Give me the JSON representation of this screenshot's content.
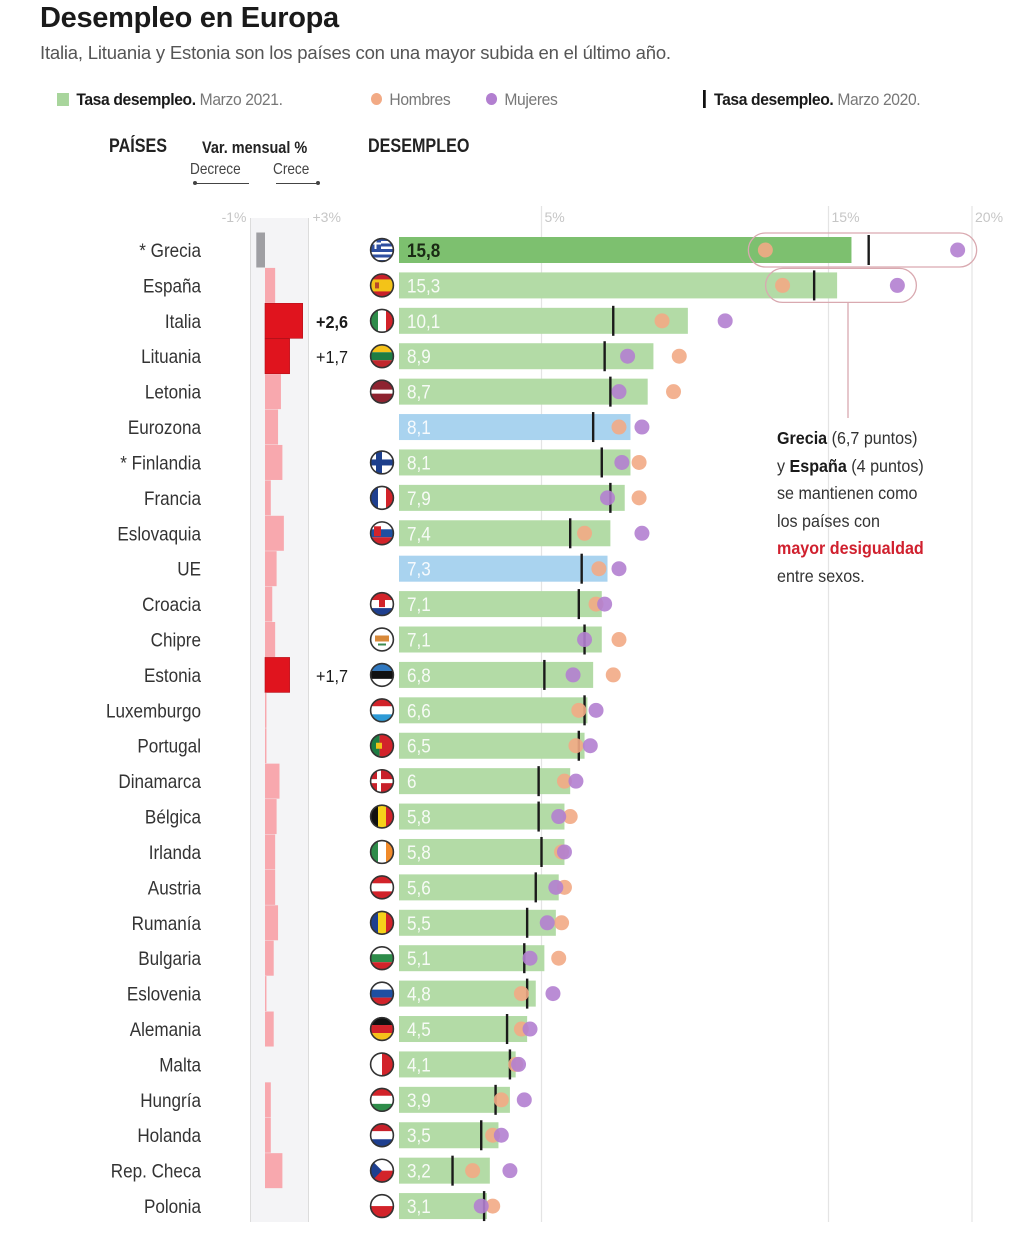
{
  "header": {
    "title": "Desempleo en Europa",
    "subtitle": "Italia, Lituania y Estonia son los países con una mayor subida en el último año."
  },
  "legend": {
    "rate_2021_bold": "Tasa desempleo.",
    "rate_2021_rest": "Marzo 2021.",
    "men": "Hombres",
    "women": "Mujeres",
    "rate_2020_bold": "Tasa desempleo.",
    "rate_2020_rest": "Marzo 2020."
  },
  "columns": {
    "countries": "PAÍSES",
    "monthly_var": "Var. mensual %",
    "decrease": "Decrece",
    "increase": "Crece",
    "unemployment": "DESEMPLEO"
  },
  "annotation": {
    "greece": "Grecia",
    "greece_points": " (6,7 puntos)",
    "and": "y ",
    "spain": "España",
    "spain_points": " (4 puntos)",
    "line3": "se mantienen como",
    "line4": "los países con",
    "highlight": "mayor desigualdad",
    "line6": "entre sexos."
  },
  "colors": {
    "bar_default": "#b3dba6",
    "bar_highlight": "#7dc06f",
    "bar_aggregate": "#a9d3ef",
    "men": "#f2aa85",
    "women": "#b27fd0",
    "var_strong": "#e0141e",
    "var_light": "#f8a3aa",
    "var_negative": "#9a9a9e",
    "marker_2020": "#1a1a1a",
    "pill_outline": "#d9a9b0",
    "accent_red": "#d0202e"
  },
  "chart_data": {
    "type": "bar",
    "title": "Desempleo en Europa",
    "subtitle": "Italia, Lituania y Estonia son los países con una mayor subida en el último año.",
    "categories": [
      "* Grecia",
      "España",
      "Italia",
      "Lituania",
      "Letonia",
      "Eurozona",
      "* Finlandia",
      "Francia",
      "Eslovaquia",
      "UE",
      "Croacia",
      "Chipre",
      "Estonia",
      "Luxemburgo",
      "Portugal",
      "Dinamarca",
      "Bélgica",
      "Irlanda",
      "Austria",
      "Rumanía",
      "Bulgaria",
      "Eslovenia",
      "Alemania",
      "Malta",
      "Hungría",
      "Holanda",
      "Rep. Checa",
      "Polonia"
    ],
    "flags": [
      "greece-flag",
      "spain-flag",
      "italy-flag",
      "lithuania-flag",
      "latvia-flag",
      null,
      "finland-flag",
      "france-flag",
      "slovakia-flag",
      null,
      "croatia-flag",
      "cyprus-flag",
      "estonia-flag",
      "luxembourg-flag",
      "portugal-flag",
      "denmark-flag",
      "belgium-flag",
      "ireland-flag",
      "austria-flag",
      "romania-flag",
      "bulgaria-flag",
      "slovenia-flag",
      "germany-flag",
      "malta-flag",
      "hungary-flag",
      "netherlands-flag",
      "czech-flag",
      "poland-flag"
    ],
    "aggregates": [
      "Eurozona",
      "UE"
    ],
    "highlighted": [
      "* Grecia"
    ],
    "series": [
      {
        "name": "Tasa desempleo. Marzo 2021",
        "kind": "bar",
        "values": [
          15.8,
          15.3,
          10.1,
          8.9,
          8.7,
          8.1,
          8.1,
          7.9,
          7.4,
          7.3,
          7.1,
          7.1,
          6.8,
          6.6,
          6.5,
          6.0,
          5.8,
          5.8,
          5.6,
          5.5,
          5.1,
          4.8,
          4.5,
          4.1,
          3.9,
          3.5,
          3.2,
          3.1
        ],
        "labels": [
          "15,8",
          "15,3",
          "10,1",
          "8,9",
          "8,7",
          "8,1",
          "8,1",
          "7,9",
          "7,4",
          "7,3",
          "7,1",
          "7,1",
          "6,8",
          "6,6",
          "6,5",
          "6",
          "5,8",
          "5,8",
          "5,6",
          "5,5",
          "5,1",
          "4,8",
          "4,5",
          "4,1",
          "3,9",
          "3,5",
          "3,2",
          "3,1"
        ]
      },
      {
        "name": "Tasa desempleo. Marzo 2020",
        "kind": "tick",
        "values": [
          16.4,
          14.5,
          7.5,
          7.2,
          7.4,
          6.8,
          7.1,
          7.4,
          6.0,
          6.4,
          6.3,
          6.5,
          5.1,
          6.5,
          6.3,
          4.9,
          4.9,
          5.0,
          4.8,
          4.5,
          4.4,
          4.5,
          3.8,
          3.9,
          3.4,
          2.9,
          1.9,
          3.0
        ]
      },
      {
        "name": "Hombres",
        "kind": "dot",
        "values": [
          12.8,
          13.4,
          9.2,
          9.8,
          9.6,
          7.7,
          8.4,
          8.4,
          6.5,
          7.0,
          6.9,
          7.7,
          7.5,
          6.3,
          6.2,
          5.8,
          6.0,
          5.7,
          5.8,
          5.7,
          5.6,
          4.3,
          4.3,
          4.1,
          3.6,
          3.3,
          2.6,
          3.3
        ]
      },
      {
        "name": "Mujeres",
        "kind": "dot",
        "values": [
          19.5,
          17.4,
          11.4,
          8.0,
          7.7,
          8.5,
          7.8,
          7.3,
          8.5,
          7.7,
          7.2,
          6.5,
          6.1,
          6.9,
          6.7,
          6.2,
          5.6,
          5.8,
          5.5,
          5.2,
          4.6,
          5.4,
          4.6,
          4.2,
          4.4,
          3.6,
          3.9,
          2.9
        ]
      },
      {
        "name": "Var. mensual %",
        "kind": "diverging-bar",
        "values": [
          -0.6,
          0.7,
          2.6,
          1.7,
          1.1,
          0.9,
          1.2,
          0.4,
          1.3,
          0.8,
          0.5,
          0.7,
          1.7,
          0.1,
          0.1,
          1.0,
          0.8,
          0.7,
          0.7,
          0.9,
          0.6,
          0.1,
          0.6,
          0.0,
          0.4,
          0.4,
          1.2,
          0.0
        ],
        "labels": [
          "",
          "",
          "+2,6",
          "+1,7",
          "",
          "",
          "",
          "",
          "",
          "",
          "",
          "",
          "+1,7",
          "",
          "",
          "",
          "",
          "",
          "",
          "",
          "",
          "",
          "",
          "",
          "",
          "",
          "",
          ""
        ]
      }
    ],
    "xaxis_unemployment": {
      "ticks": [
        5,
        15,
        20
      ],
      "tick_labels": [
        "5%",
        "15%",
        "20%"
      ],
      "range": [
        0,
        20
      ]
    },
    "xaxis_var": {
      "ticks": [
        -1,
        3
      ],
      "tick_labels": [
        "-1%",
        "+3%"
      ],
      "range": [
        -1,
        3
      ]
    },
    "gender_gap_highlight": [
      "* Grecia",
      "España"
    ],
    "xlabel": "",
    "ylabel": "",
    "grid": true,
    "legend_position": "top"
  }
}
